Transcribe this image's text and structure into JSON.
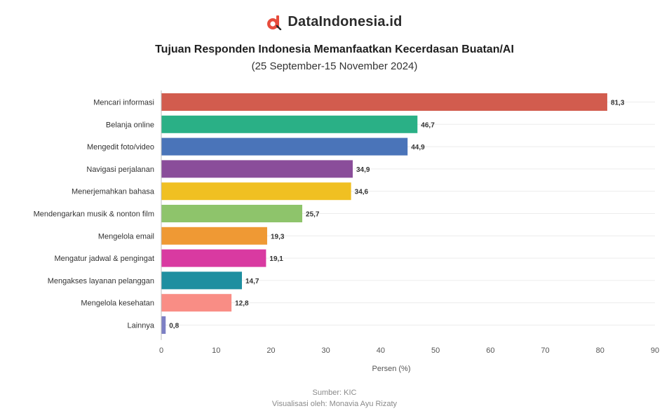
{
  "brand": {
    "name": "DataIndonesia.id",
    "logo_icon": "dataindonesia-logo-icon",
    "accent": "#e74c3c"
  },
  "chart_data": {
    "type": "bar",
    "orientation": "horizontal",
    "title": "Tujuan Responden Indonesia Memanfaatkan Kecerdasan Buatan/AI",
    "subtitle": "(25 September-15 November 2024)",
    "xlabel": "Persen (%)",
    "ylabel": "",
    "xlim": [
      0,
      90
    ],
    "xticks": [
      0,
      10,
      20,
      30,
      40,
      50,
      60,
      70,
      80,
      90
    ],
    "grid": true,
    "categories": [
      "Mencari informasi",
      "Belanja online",
      "Mengedit foto/video",
      "Navigasi perjalanan",
      "Menerjemahkan bahasa",
      "Mendengarkan musik & nonton film",
      "Mengelola email",
      "Mengatur jadwal & pengingat",
      "Mengakses layanan pelanggan",
      "Mengelola kesehatan",
      "Lainnya"
    ],
    "values": [
      81.3,
      46.7,
      44.9,
      34.9,
      34.6,
      25.7,
      19.3,
      19.1,
      14.7,
      12.8,
      0.8
    ],
    "value_labels": [
      "81,3",
      "46,7",
      "44,9",
      "34,9",
      "34,6",
      "25,7",
      "19,3",
      "19,1",
      "14,7",
      "12,8",
      "0,8"
    ],
    "colors": [
      "#d25c4e",
      "#2ab086",
      "#4a74b9",
      "#8a4d9a",
      "#f0c022",
      "#8ec46b",
      "#ef9934",
      "#d93aa1",
      "#1e8fa0",
      "#f98d85",
      "#7c7fc4"
    ]
  },
  "footer": {
    "source": "Sumber: KIC",
    "visualized_by": "Visualisasi oleh: Monavia Ayu Rizaty"
  }
}
